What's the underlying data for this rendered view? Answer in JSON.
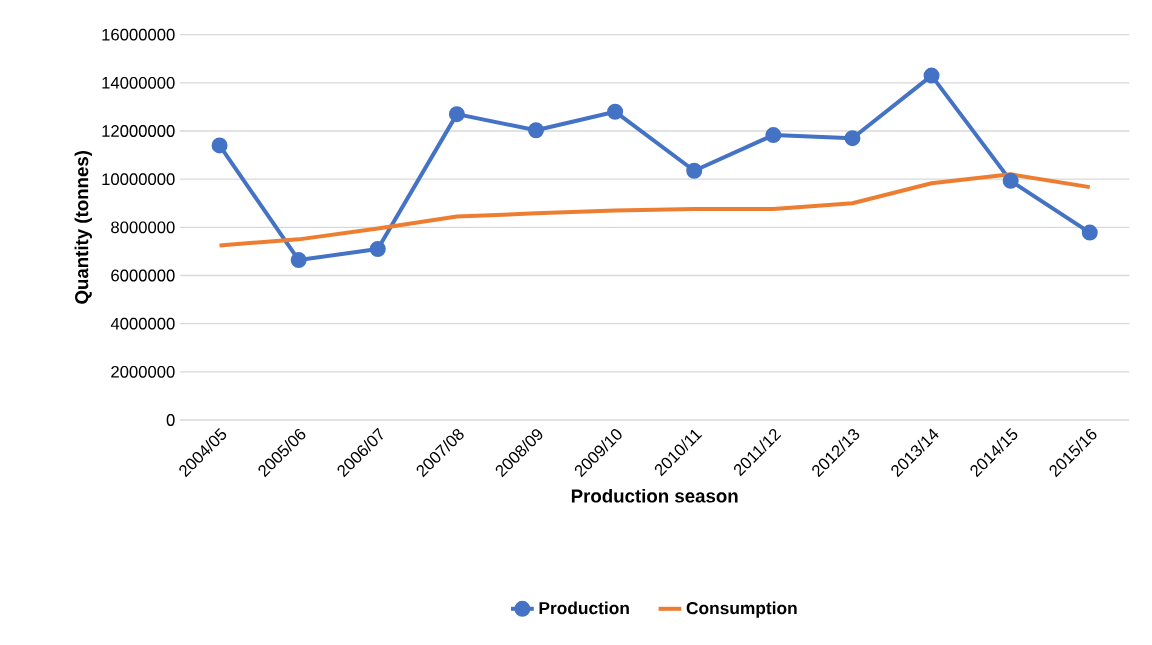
{
  "chart_data": {
    "type": "line",
    "xlabel": "Production season",
    "ylabel": "Quantity (tonnes)",
    "categories": [
      "2004/05",
      "2005/06",
      "2006/07",
      "2007/08",
      "2008/09",
      "2009/10",
      "2010/11",
      "2011/12",
      "2012/13",
      "2013/14",
      "2014/15",
      "2015/16"
    ],
    "series": [
      {
        "name": "Production",
        "color": "#4472c4",
        "marker": "circle",
        "values": [
          11400000,
          6640000,
          7100000,
          12700000,
          12030000,
          12800000,
          10350000,
          11830000,
          11700000,
          14300000,
          9930000,
          7780000
        ]
      },
      {
        "name": "Consumption",
        "color": "#ed7d31",
        "marker": "none",
        "values": [
          7250000,
          7500000,
          7950000,
          8450000,
          8580000,
          8700000,
          8760000,
          8760000,
          9000000,
          9830000,
          10200000,
          9670000
        ]
      }
    ],
    "ylim": [
      0,
      16000000
    ],
    "yticks": [
      0,
      2000000,
      4000000,
      6000000,
      8000000,
      10000000,
      12000000,
      14000000,
      16000000
    ],
    "grid": "y",
    "legend": "bottom"
  }
}
